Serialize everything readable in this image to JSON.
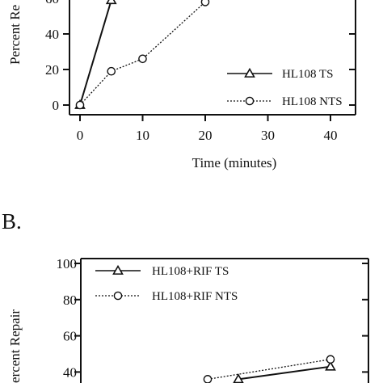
{
  "chart_data": [
    {
      "panel": "",
      "type": "line",
      "xlabel": "Time (minutes)",
      "ylabel": "Percent Re",
      "xlim": [
        0,
        45
      ],
      "ylim": [
        -3,
        60
      ],
      "xticks": [
        "0",
        "10",
        "20",
        "30",
        "40"
      ],
      "yticks": [
        "0",
        "20",
        "40",
        "60"
      ],
      "legend_position": "bottom-right",
      "series": [
        {
          "name": "HL108 TS",
          "marker": "triangle",
          "line": "solid",
          "x": [
            0,
            5
          ],
          "y": [
            0,
            59
          ]
        },
        {
          "name": "HL108 NTS",
          "marker": "circle",
          "line": "dotted",
          "x": [
            0,
            5,
            10,
            20
          ],
          "y": [
            0,
            19,
            26,
            58
          ]
        }
      ]
    },
    {
      "panel": "B.",
      "type": "line",
      "xlabel": "",
      "ylabel": "ercent Repair",
      "ylim": [
        30,
        100
      ],
      "yticks": [
        "100",
        "80",
        "60",
        "40"
      ],
      "legend_position": "top-left",
      "series": [
        {
          "name": "HL108+RIF TS",
          "marker": "triangle",
          "line": "solid",
          "x": [
            25,
            40
          ],
          "y": [
            36,
            43
          ]
        },
        {
          "name": "HL108+RIF NTS",
          "marker": "circle",
          "line": "dotted",
          "x": [
            20,
            40
          ],
          "y": [
            36,
            47
          ]
        }
      ]
    }
  ]
}
